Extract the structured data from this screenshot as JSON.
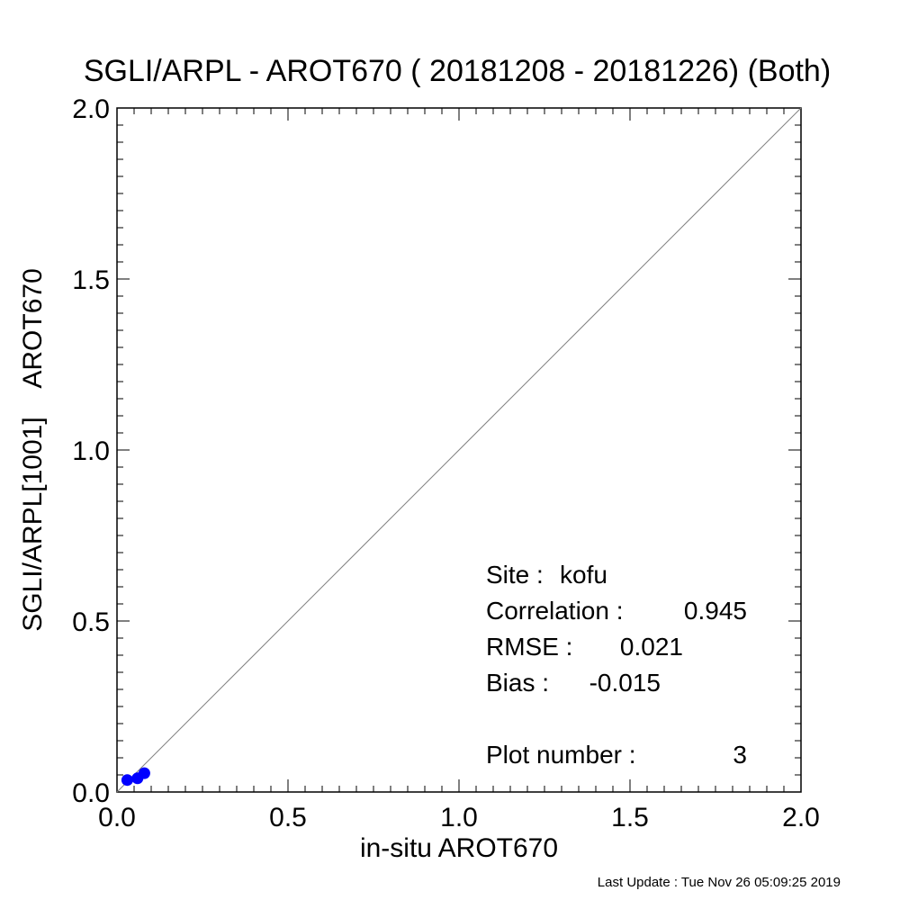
{
  "chart_data": {
    "type": "scatter",
    "title": "SGLI/ARPL - AROT670 ( 20181208 - 20181226) (Both)",
    "xlabel": "in-situ AROT670",
    "ylabel": "SGLI/ARPL[1001]    AROT670",
    "xlim": [
      0.0,
      2.0
    ],
    "ylim": [
      0.0,
      2.0
    ],
    "x_ticks": [
      "0.0",
      "0.5",
      "1.0",
      "1.5",
      "2.0"
    ],
    "y_ticks": [
      "0.0",
      "0.5",
      "1.0",
      "1.5",
      "2.0"
    ],
    "reference_line": "y = x",
    "grid": false,
    "point_color": "#0000ff",
    "line_color": "#808080",
    "points": [
      {
        "x": 0.03,
        "y": 0.035
      },
      {
        "x": 0.06,
        "y": 0.04
      },
      {
        "x": 0.08,
        "y": 0.055
      }
    ],
    "stats": {
      "site_label": "Site :",
      "site_value": "kofu",
      "correlation_label": "Correlation :",
      "correlation_value": "0.945",
      "rmse_label": "RMSE :",
      "rmse_value": "0.021",
      "bias_label": "Bias :",
      "bias_value": "-0.015",
      "plot_number_label": "Plot number :",
      "plot_number_value": "3"
    }
  },
  "footer": {
    "last_update": "Last Update : Tue Nov 26 05:09:25 2019"
  }
}
